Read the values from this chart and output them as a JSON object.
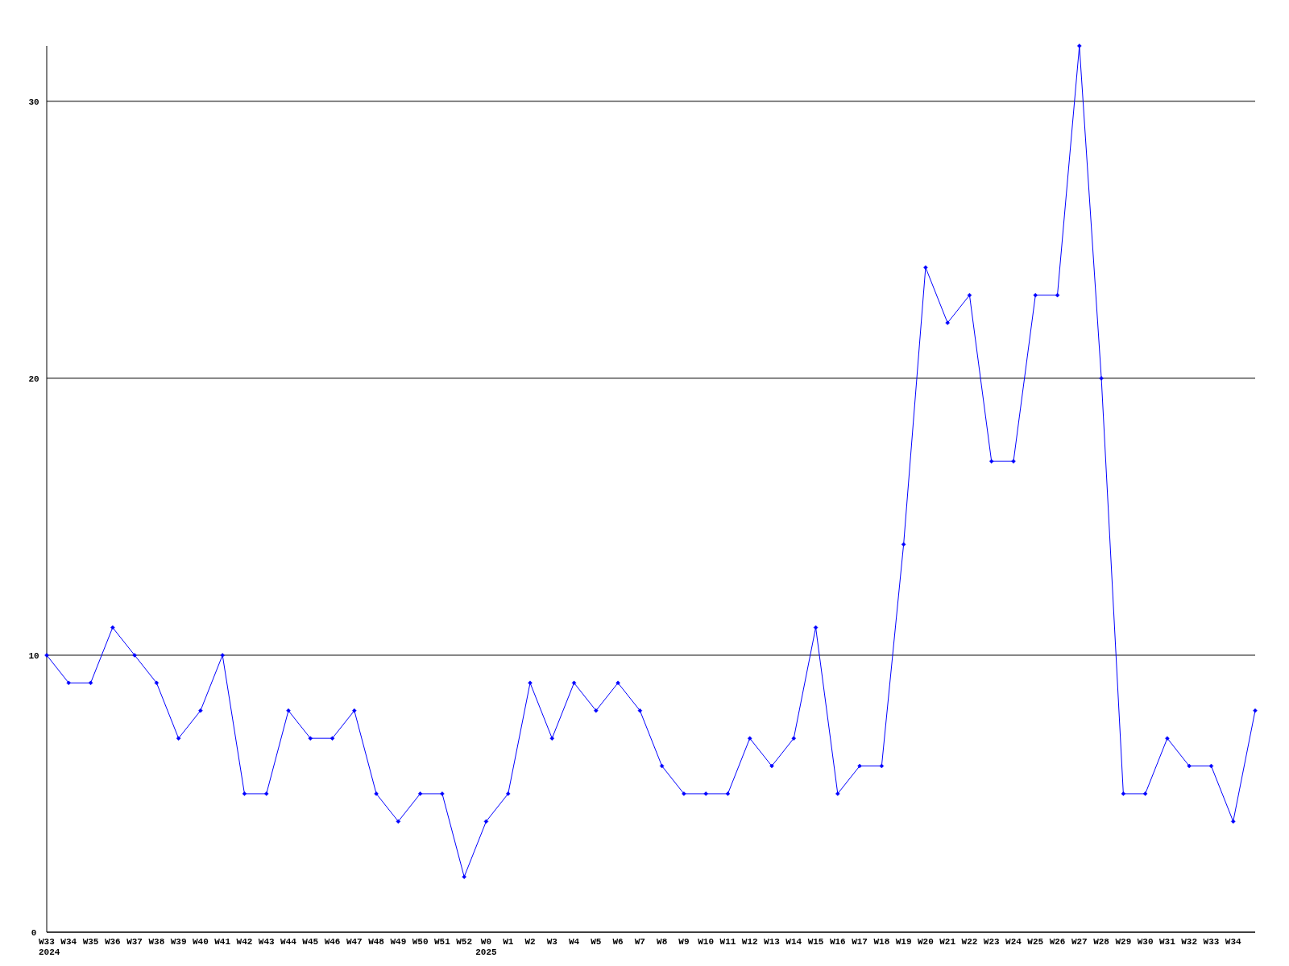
{
  "chart_data": {
    "type": "line",
    "categories": [
      "W33\n2024",
      "W34",
      "W35",
      "W36",
      "W37",
      "W38",
      "W39",
      "W40",
      "W41",
      "W42",
      "W43",
      "W44",
      "W45",
      "W46",
      "W47",
      "W48",
      "W49",
      "W50",
      "W51",
      "W52",
      "W0\n2025",
      "W1",
      "W2",
      "W3",
      "W4",
      "W5",
      "W6",
      "W7",
      "W8",
      "W9",
      "W10",
      "W11",
      "W12",
      "W13",
      "W14",
      "W15",
      "W16",
      "W17",
      "W18",
      "W19",
      "W20",
      "W21",
      "W22",
      "W23",
      "W24",
      "W25",
      "W26",
      "W27",
      "W28",
      "W29",
      "W30",
      "W31",
      "W32",
      "W33",
      "W34",
      null
    ],
    "series": [
      {
        "color": "#0000ff",
        "values": [
          10,
          9,
          9,
          11,
          10,
          9,
          7,
          8,
          10,
          5,
          5,
          8,
          7,
          7,
          8,
          5,
          4,
          5,
          5,
          2,
          4,
          5,
          9,
          7,
          9,
          8,
          9,
          8,
          6,
          5,
          5,
          5,
          7,
          6,
          7,
          11,
          5,
          6,
          6,
          14,
          24,
          22,
          23,
          17,
          17,
          23,
          23,
          32,
          20,
          5,
          5,
          7,
          6,
          6,
          4,
          8
        ]
      }
    ],
    "ylim": [
      0,
      32
    ],
    "yticks": [
      0,
      10,
      20,
      30
    ],
    "grid": "y",
    "marker": "diamond",
    "line_style": "solid"
  }
}
